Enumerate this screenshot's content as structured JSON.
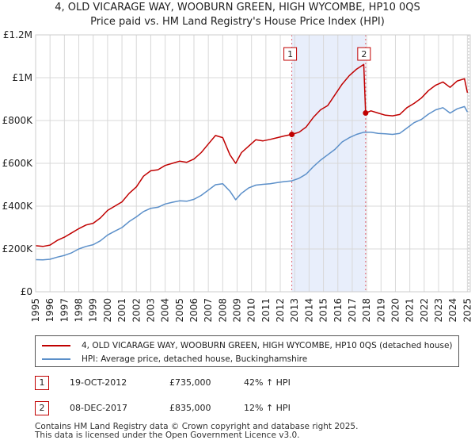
{
  "chart_data": {
    "type": "line",
    "title": "4, OLD VICARAGE WAY, WOOBURN GREEN, HIGH WYCOMBE, HP10 0QS",
    "subtitle": "Price paid vs. HM Land Registry's House Price Index (HPI)",
    "xlim": [
      1995,
      2025.2
    ],
    "ylim": [
      0,
      1200000
    ],
    "y_ticks": [
      {
        "value": 0,
        "label": "£0"
      },
      {
        "value": 200000,
        "label": "£200K"
      },
      {
        "value": 400000,
        "label": "£400K"
      },
      {
        "value": 600000,
        "label": "£600K"
      },
      {
        "value": 800000,
        "label": "£800K"
      },
      {
        "value": 1000000,
        "label": "£1M"
      },
      {
        "value": 1200000,
        "label": "£1.2M"
      }
    ],
    "x_ticks": [
      "1995",
      "1996",
      "1997",
      "1998",
      "1999",
      "2000",
      "2001",
      "2002",
      "2003",
      "2004",
      "2005",
      "2006",
      "2007",
      "2008",
      "2009",
      "2010",
      "2011",
      "2012",
      "2013",
      "2014",
      "2015",
      "2016",
      "2017",
      "2018",
      "2019",
      "2020",
      "2021",
      "2022",
      "2023",
      "2024",
      "2025"
    ],
    "colors": {
      "property": "#c00000",
      "hpi": "#5b8fc9",
      "shade": "#e8eefb",
      "grid": "#d8d8d8",
      "vline": "#e06070"
    },
    "series": [
      {
        "name": "4, OLD VICARAGE WAY, WOOBURN GREEN, HIGH WYCOMBE, HP10 0QS (detached house)",
        "x": [
          1995.0,
          1995.5,
          1996.0,
          1996.5,
          1997.0,
          1997.5,
          1998.0,
          1998.5,
          1999.0,
          1999.5,
          2000.0,
          2000.5,
          2001.0,
          2001.5,
          2002.0,
          2002.5,
          2003.0,
          2003.5,
          2004.0,
          2004.5,
          2005.0,
          2005.5,
          2006.0,
          2006.5,
          2007.0,
          2007.5,
          2008.0,
          2008.5,
          2008.9,
          2009.3,
          2009.8,
          2010.3,
          2010.8,
          2011.3,
          2011.8,
          2012.3,
          2012.8,
          2013.3,
          2013.8,
          2014.3,
          2014.8,
          2015.3,
          2015.8,
          2016.3,
          2016.8,
          2017.3,
          2017.8,
          2017.93,
          2018.3,
          2018.8,
          2019.3,
          2019.8,
          2020.3,
          2020.8,
          2021.3,
          2021.8,
          2022.3,
          2022.8,
          2023.3,
          2023.8,
          2024.3,
          2024.8,
          2025.0
        ],
        "values": [
          215000,
          212000,
          218000,
          240000,
          255000,
          275000,
          295000,
          312000,
          320000,
          345000,
          380000,
          400000,
          420000,
          460000,
          490000,
          540000,
          565000,
          570000,
          590000,
          600000,
          610000,
          605000,
          620000,
          650000,
          690000,
          730000,
          720000,
          640000,
          600000,
          650000,
          680000,
          710000,
          705000,
          712000,
          720000,
          728000,
          735000,
          745000,
          770000,
          815000,
          850000,
          870000,
          920000,
          970000,
          1010000,
          1040000,
          1062000,
          835000,
          845000,
          835000,
          825000,
          822000,
          828000,
          860000,
          880000,
          905000,
          940000,
          965000,
          980000,
          955000,
          985000,
          995000,
          930000
        ]
      },
      {
        "name": "HPI: Average price, detached house, Buckinghamshire",
        "x": [
          1995.0,
          1995.5,
          1996.0,
          1996.5,
          1997.0,
          1997.5,
          1998.0,
          1998.5,
          1999.0,
          1999.5,
          2000.0,
          2000.5,
          2001.0,
          2001.5,
          2002.0,
          2002.5,
          2003.0,
          2003.5,
          2004.0,
          2004.5,
          2005.0,
          2005.5,
          2006.0,
          2006.5,
          2007.0,
          2007.5,
          2008.0,
          2008.5,
          2008.9,
          2009.3,
          2009.8,
          2010.3,
          2010.8,
          2011.3,
          2011.8,
          2012.3,
          2012.8,
          2013.3,
          2013.8,
          2014.3,
          2014.8,
          2015.3,
          2015.8,
          2016.3,
          2016.8,
          2017.3,
          2017.8,
          2017.93,
          2018.3,
          2018.8,
          2019.3,
          2019.8,
          2020.3,
          2020.8,
          2021.3,
          2021.8,
          2022.3,
          2022.8,
          2023.3,
          2023.8,
          2024.3,
          2024.8,
          2025.0
        ],
        "values": [
          150000,
          149000,
          152000,
          162000,
          170000,
          182000,
          200000,
          212000,
          220000,
          238000,
          265000,
          283000,
          300000,
          328000,
          350000,
          375000,
          390000,
          395000,
          410000,
          418000,
          425000,
          423000,
          432000,
          450000,
          475000,
          500000,
          505000,
          470000,
          430000,
          460000,
          485000,
          498000,
          502000,
          505000,
          510000,
          515000,
          518000,
          530000,
          550000,
          585000,
          615000,
          640000,
          665000,
          700000,
          720000,
          735000,
          745000,
          745000,
          745000,
          740000,
          738000,
          735000,
          740000,
          765000,
          790000,
          805000,
          830000,
          850000,
          860000,
          835000,
          855000,
          865000,
          840000
        ]
      }
    ],
    "annotations": [
      {
        "label": "1",
        "x": 2012.8,
        "value": 735000
      },
      {
        "label": "2",
        "x": 2017.93,
        "value": 835000
      }
    ]
  },
  "legend": {
    "property_label": "4, OLD VICARAGE WAY, WOOBURN GREEN, HIGH WYCOMBE, HP10 0QS (detached house)",
    "hpi_label": "HPI: Average price, detached house, Buckinghamshire"
  },
  "transactions": [
    {
      "num": "1",
      "date": "19-OCT-2012",
      "price": "£735,000",
      "hpi": "42% ↑ HPI"
    },
    {
      "num": "2",
      "date": "08-DEC-2017",
      "price": "£835,000",
      "hpi": "12% ↑ HPI"
    }
  ],
  "footer": {
    "line1": "Contains HM Land Registry data © Crown copyright and database right 2025.",
    "line2": "This data is licensed under the Open Government Licence v3.0."
  }
}
